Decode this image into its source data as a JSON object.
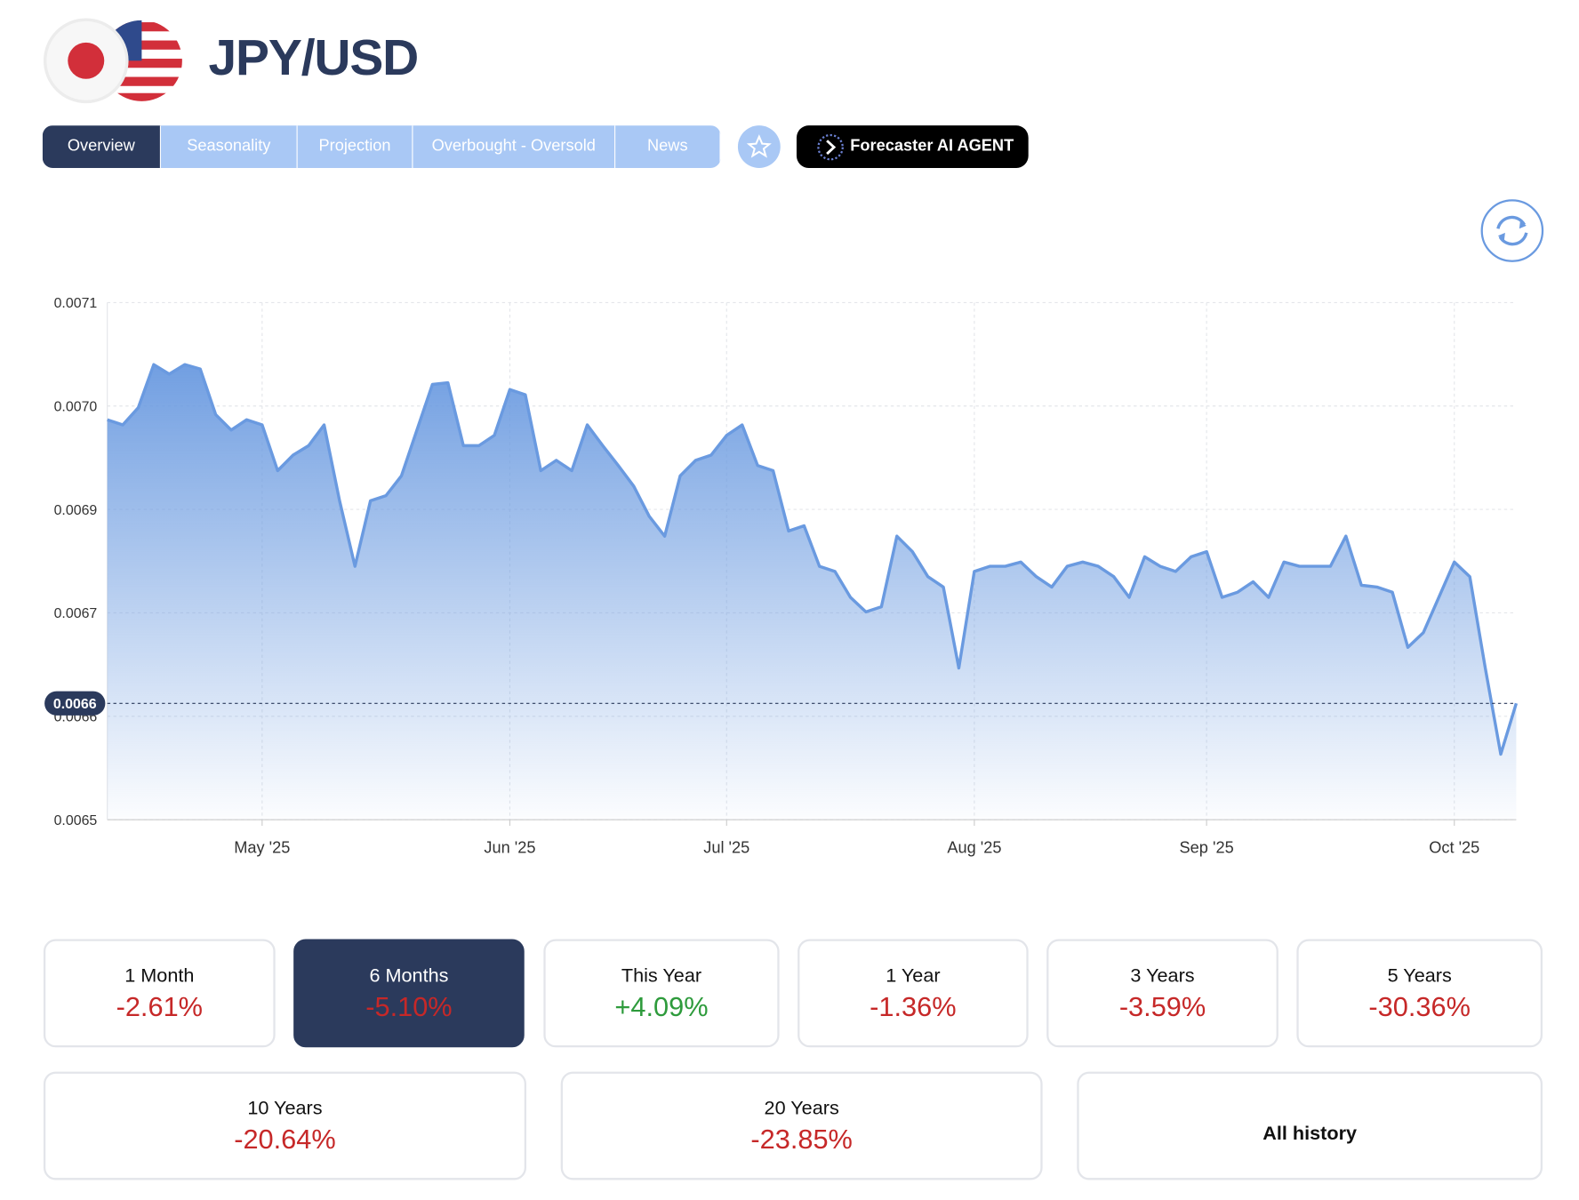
{
  "header": {
    "title": "JPY/USD"
  },
  "tabs": [
    "Overview",
    "Seasonality",
    "Projection",
    "Overbought - Oversold",
    "News"
  ],
  "active_tab": 0,
  "agent_button": "Forecaster AI AGENT",
  "chart_data": {
    "type": "area",
    "categories": [
      null,
      null,
      null,
      null,
      null,
      null,
      null,
      null,
      null,
      null,
      "May '25",
      null,
      null,
      null,
      null,
      null,
      null,
      null,
      null,
      null,
      null,
      null,
      null,
      null,
      null,
      null,
      "Jun '25",
      null,
      null,
      null,
      null,
      null,
      null,
      null,
      null,
      null,
      null,
      null,
      null,
      null,
      "Jul '25",
      null,
      null,
      null,
      null,
      null,
      null,
      null,
      null,
      null,
      null,
      null,
      null,
      null,
      null,
      null,
      "Aug '25",
      null,
      null,
      null,
      null,
      null,
      null,
      null,
      null,
      null,
      null,
      null,
      null,
      null,
      null,
      "Sep '25",
      null,
      null,
      null,
      null,
      null,
      null,
      null,
      null,
      null,
      null,
      null,
      null,
      null,
      null,
      null,
      "Oct '25",
      null,
      null,
      null,
      null
    ],
    "values": [
      0.006964,
      0.006958,
      0.006978,
      0.007028,
      0.007017,
      0.007028,
      0.007023,
      0.00697,
      0.006952,
      0.006964,
      0.006958,
      0.006905,
      0.006923,
      0.006934,
      0.006958,
      0.00687,
      0.006794,
      0.00687,
      0.006876,
      0.006899,
      0.006952,
      0.007005,
      0.007007,
      0.006934,
      0.006934,
      0.006946,
      0.006999,
      0.006993,
      0.006905,
      0.006917,
      0.006905,
      0.006958,
      0.006934,
      0.006911,
      0.006887,
      0.006852,
      0.006829,
      0.006899,
      0.006917,
      0.006923,
      0.006946,
      0.006958,
      0.006911,
      0.006905,
      0.006835,
      0.006841,
      0.006794,
      0.006788,
      0.006758,
      0.006741,
      0.006747,
      0.006829,
      0.006811,
      0.006782,
      0.00677,
      0.006676,
      0.006788,
      0.006794,
      0.006794,
      0.006799,
      0.006782,
      0.00677,
      0.006794,
      0.006799,
      0.006794,
      0.006782,
      0.006758,
      0.006805,
      0.006794,
      0.006788,
      0.006805,
      0.006811,
      0.006758,
      0.006764,
      0.006776,
      0.006758,
      0.006799,
      0.006794,
      0.006794,
      0.006794,
      0.006829,
      0.006772,
      0.00677,
      0.006764,
      0.0067,
      0.006717,
      0.006758,
      0.006799,
      0.006782,
      0.006676,
      0.006576,
      0.006635
    ],
    "current_label": "0.0066",
    "color": "#6a9ae0",
    "ylim": [
      0.0065,
      0.0071
    ],
    "yticks": [
      0.0065,
      {
        "value": 0.00662,
        "label": "0.0066"
      },
      {
        "value": 0.00674,
        "label": "0.0067"
      },
      {
        "value": 0.00686,
        "label": "0.0069"
      },
      {
        "value": 0.00698,
        "label": "0.0070"
      },
      0.0071
    ],
    "grid": true
  },
  "periods": [
    {
      "label": "1 Month",
      "change": "-2.61%",
      "color": "#c62828"
    },
    {
      "label": "6 Months",
      "change": "-5.10%",
      "color": "#c62828"
    },
    {
      "label": "This Year",
      "change": "+4.09%",
      "color": "#2e9b3c"
    },
    {
      "label": "1 Year",
      "change": "-1.36%",
      "color": "#c62828"
    },
    {
      "label": "3 Years",
      "change": "-3.59%",
      "color": "#c62828"
    },
    {
      "label": "5 Years",
      "change": "-30.36%",
      "color": "#c62828"
    },
    {
      "label": "10 Years",
      "change": "-20.64%",
      "color": "#c62828"
    },
    {
      "label": "20 Years",
      "change": "-23.85%",
      "color": "#c62828"
    }
  ],
  "active_period": 1,
  "all_history": "All history"
}
